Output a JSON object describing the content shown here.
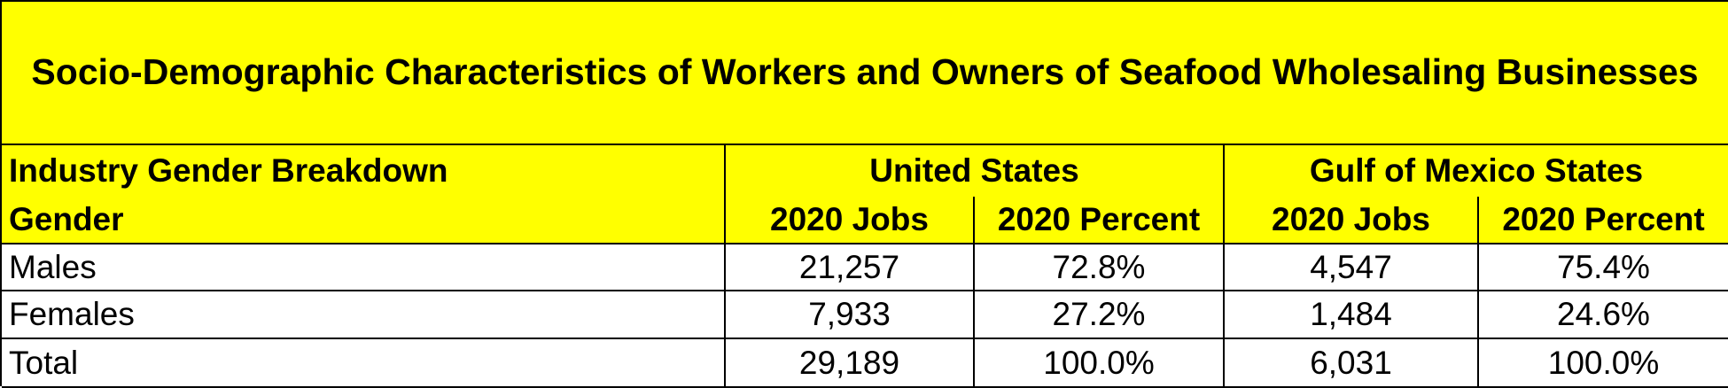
{
  "title": "Socio-Demographic Characteristics of Workers and Owners of Seafood Wholesaling Businesses",
  "header": {
    "group_label": "Industry Gender Breakdown",
    "groups": [
      "United States",
      "Gulf of Mexico States"
    ],
    "row_label": "Gender",
    "columns": [
      "2020 Jobs",
      "2020 Percent",
      "2020 Jobs",
      "2020 Percent"
    ]
  },
  "rows": [
    [
      "Males",
      "21,257",
      "72.8%",
      "4,547",
      "75.4%"
    ],
    [
      "Females",
      "7,933",
      "27.2%",
      "1,484",
      "24.6%"
    ],
    [
      "Total",
      "29,189",
      "100.0%",
      "6,031",
      "100.0%"
    ]
  ]
}
